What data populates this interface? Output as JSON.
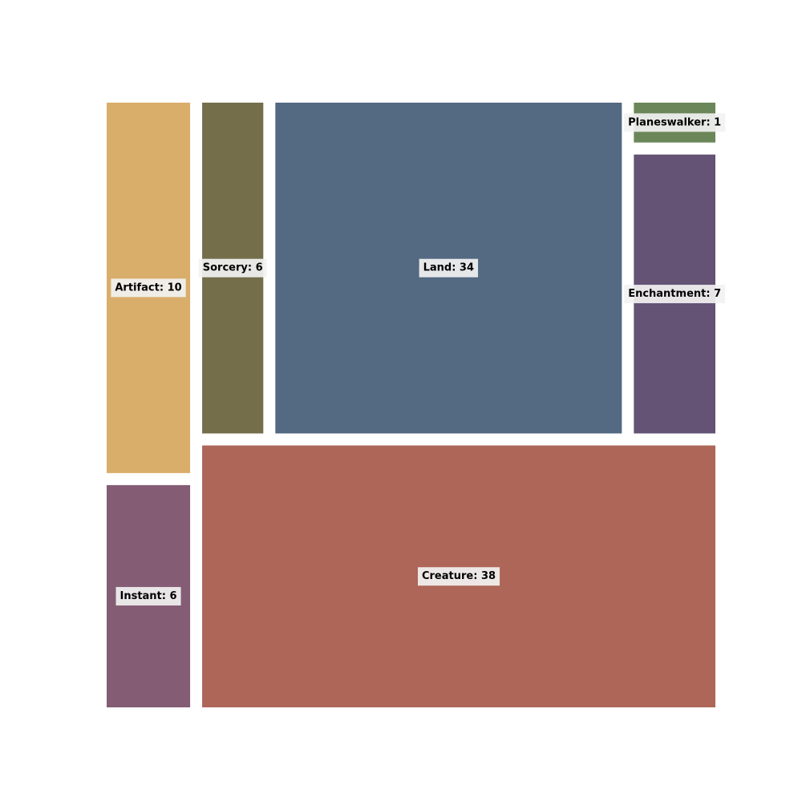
{
  "chart_data": {
    "type": "treemap",
    "title": "",
    "items": [
      {
        "category": "Artifact",
        "value": 10,
        "label": "Artifact: 10",
        "color": "#D9AD6A"
      },
      {
        "category": "Instant",
        "value": 6,
        "label": "Instant: 6",
        "color": "#845C74"
      },
      {
        "category": "Sorcery",
        "value": 6,
        "label": "Sorcery: 6",
        "color": "#746E4B"
      },
      {
        "category": "Land",
        "value": 34,
        "label": "Land: 34",
        "color": "#546982"
      },
      {
        "category": "Planeswalker",
        "value": 1,
        "label": "Planeswalker: 1",
        "color": "#6B8658"
      },
      {
        "category": "Enchantment",
        "value": 7,
        "label": "Enchantment: 7",
        "color": "#645375"
      },
      {
        "category": "Creature",
        "value": 38,
        "label": "Creature: 38",
        "color": "#AD6658"
      }
    ]
  }
}
